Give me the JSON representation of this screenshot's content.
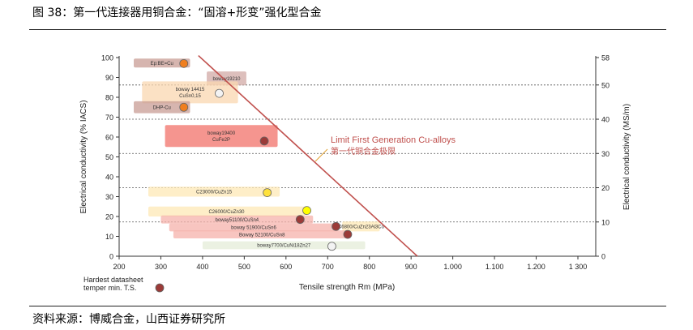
{
  "figure_title": "图 38：第一代连接器用铜合金：“固溶+形变”强化型合金",
  "source_note": "资料来源：博威合金，山西证券研究所",
  "chart_data": {
    "type": "scatter",
    "xlabel": "Tensile strength Rm (MPa)",
    "ylabel": "Electrical conductivity (% IACS)",
    "y2label": "Electrical conductivity (MS/m)",
    "xlim": [
      200,
      1300
    ],
    "ylim": [
      0,
      100
    ],
    "y2lim": [
      0,
      58
    ],
    "x_ticks": [
      200,
      300,
      400,
      500,
      600,
      700,
      800,
      900,
      1000,
      1100,
      1200,
      1300
    ],
    "x_tick_labels": [
      "200",
      "300",
      "400",
      "500",
      "600",
      "700",
      "800",
      "900",
      "1.000",
      "1.100",
      "1.200",
      "1 300"
    ],
    "y_ticks": [
      0,
      10,
      20,
      30,
      40,
      50,
      60,
      70,
      80,
      90,
      100
    ],
    "y2_ticks": [
      0,
      10,
      20,
      30,
      40,
      50,
      58
    ],
    "y2_tick_labels": [
      "0",
      "10",
      "20",
      "30",
      "40",
      "50",
      "58"
    ],
    "y2_dashed_lines": [
      10,
      20,
      30,
      40,
      50
    ],
    "limit_line": {
      "label_en": "Limit First Generation Cu-alloys",
      "label_cn": "第一代铜合金极限",
      "color": "#c0504d",
      "points": [
        [
          390,
          101
        ],
        [
          915,
          0
        ]
      ]
    },
    "legend": {
      "line1": "Hardest datasheet",
      "line2": "temper min. T.S.",
      "marker_color": "#9b3b38"
    },
    "alloys": [
      {
        "label": "Ер:BE=Cu",
        "x_range": [
          235,
          370
        ],
        "y_range": [
          95,
          99.5
        ],
        "point": [
          355,
          97
        ],
        "point_color": "#f07f1f",
        "band_color": "#c89c94"
      },
      {
        "label": "boway19210",
        "x_range": [
          410,
          505
        ],
        "y_range": [
          86,
          93
        ],
        "point": null,
        "point_color": null,
        "band_color": "#d2aaa5"
      },
      {
        "label": "boway 14415\nCuSn0,15",
        "x_range": [
          255,
          485
        ],
        "y_range": [
          77,
          88
        ],
        "point": [
          440,
          82
        ],
        "point_color": "#f3f3f3",
        "band_color": "#fad7b0"
      },
      {
        "label": "DHP-Cu",
        "x_range": [
          235,
          370
        ],
        "y_range": [
          72,
          78
        ],
        "point": [
          355,
          75
        ],
        "point_color": "#f07f1f",
        "band_color": "#c89c94"
      },
      {
        "label": "boway19400\nCuFe2P",
        "x_range": [
          310,
          580
        ],
        "y_range": [
          55,
          66
        ],
        "point": [
          548,
          58
        ],
        "point_color": "#9b3b38",
        "band_color": "#f2726a"
      },
      {
        "label": "C23000/CuZn15",
        "x_range": [
          270,
          585
        ],
        "y_range": [
          30,
          35
        ],
        "point": [
          555,
          32
        ],
        "point_color": "#ffe13a",
        "band_color": "#fde8b6"
      },
      {
        "label": "C26000/CuZn30",
        "x_range": [
          270,
          645
        ],
        "y_range": [
          20,
          25
        ],
        "point": [
          650,
          23
        ],
        "point_color": "#ffff00",
        "band_color": "#fde8b6"
      },
      {
        "label": "boway51100/CuSn4",
        "x_range": [
          300,
          665
        ],
        "y_range": [
          16.5,
          20.5
        ],
        "point": [
          634,
          18.5
        ],
        "point_color": "#9b3b38",
        "band_color": "#f5b1ab"
      },
      {
        "label": "boway 51900/CuSn6",
        "x_range": [
          320,
          725
        ],
        "y_range": [
          12.5,
          16.5
        ],
        "point": [
          720,
          15
        ],
        "point_color": "#9b3b38",
        "band_color": "#f5b1ab"
      },
      {
        "label": "C6800/CuZn23Al3Co",
        "x_range": [
          735,
          825
        ],
        "y_range": [
          12.5,
          17.5
        ],
        "point": null,
        "point_color": null,
        "band_color": "#fde8b6"
      },
      {
        "label": "Boway 52100/CuSn8",
        "x_range": [
          330,
          755
        ],
        "y_range": [
          9,
          13
        ],
        "point": [
          748,
          11
        ],
        "point_color": "#9b3b38",
        "band_color": "#f5b1ab"
      },
      {
        "label": "boway7700/CuNi18Zn27",
        "x_range": [
          400,
          790
        ],
        "y_range": [
          3.5,
          7.5
        ],
        "point": [
          710,
          5
        ],
        "point_color": "#f3f3f3",
        "band_color": "#e4ecd8"
      }
    ]
  }
}
